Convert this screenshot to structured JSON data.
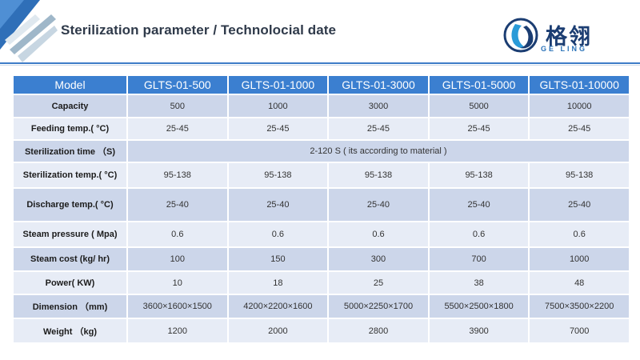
{
  "header": {
    "title": "Sterilization parameter / Technolocial  date",
    "logo_cn": "格翎",
    "logo_en": "GE LING"
  },
  "colors": {
    "header_bg": "#3b7fd0",
    "row_dark": "#ccd6ea",
    "row_light": "#e7ecf6",
    "accent_line": "#3e7cc7"
  },
  "table": {
    "headers": [
      "Model",
      "GLTS-01-500",
      "GLTS-01-1000",
      "GLTS-01-3000",
      "GLTS-01-5000",
      "GLTS-01-10000"
    ],
    "rows": {
      "capacity": {
        "label": "Capacity",
        "values": [
          "500",
          "1000",
          "3000",
          "5000",
          "10000"
        ]
      },
      "feeding": {
        "label": "Feeding temp.( °C)",
        "values": [
          "25-45",
          "25-45",
          "25-45",
          "25-45",
          "25-45"
        ]
      },
      "ster_time": {
        "label": "Sterilization time （S)",
        "value": "2-120 S ( its according to material )"
      },
      "ster_temp": {
        "label": "Sterilization temp.( °C)",
        "values": [
          "95-138",
          "95-138",
          "95-138",
          "95-138",
          "95-138"
        ]
      },
      "discharge": {
        "label": "Discharge temp.( °C)",
        "values": [
          "25-40",
          "25-40",
          "25-40",
          "25-40",
          "25-40"
        ]
      },
      "steam_pressure": {
        "label": "Steam pressure ( Mpa)",
        "values": [
          "0.6",
          "0.6",
          "0.6",
          "0.6",
          "0.6"
        ]
      },
      "steam_cost": {
        "label": "Steam cost (kg/ hr)",
        "values": [
          "100",
          "150",
          "300",
          "700",
          "1000"
        ]
      },
      "power": {
        "label": "Power( KW)",
        "values": [
          "10",
          "18",
          "25",
          "38",
          "48"
        ]
      },
      "dimension": {
        "label": "Dimension （mm)",
        "values": [
          "3600×1600×1500",
          "4200×2200×1600",
          "5000×2250×1700",
          "5500×2500×1800",
          "7500×3500×2200"
        ]
      },
      "weight": {
        "label": "Weight （kg)",
        "values": [
          "1200",
          "2000",
          "2800",
          "3900",
          "7000"
        ]
      }
    }
  }
}
